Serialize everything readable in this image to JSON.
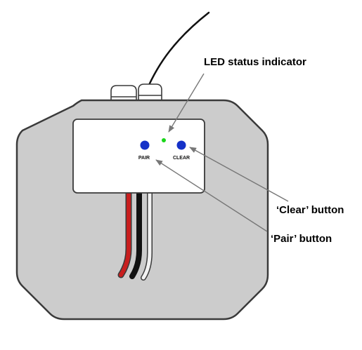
{
  "colors": {
    "body_fill": "#cccccc",
    "body_stroke": "#3a3a3a",
    "panel_fill": "#ffffff",
    "button_blue": "#1531c8",
    "led_green": "#19d619",
    "wire_red": "#c81e1e",
    "wire_black": "#111111",
    "wire_white": "#f2f2f2",
    "leader_line": "#777777"
  },
  "device": {
    "buttons": [
      {
        "label": "PAIR"
      },
      {
        "label": "CLEAR"
      }
    ]
  },
  "callouts": [
    {
      "label": "LED status indicator"
    },
    {
      "label": "‘Clear’ button"
    },
    {
      "label": "‘Pair’ button"
    }
  ]
}
